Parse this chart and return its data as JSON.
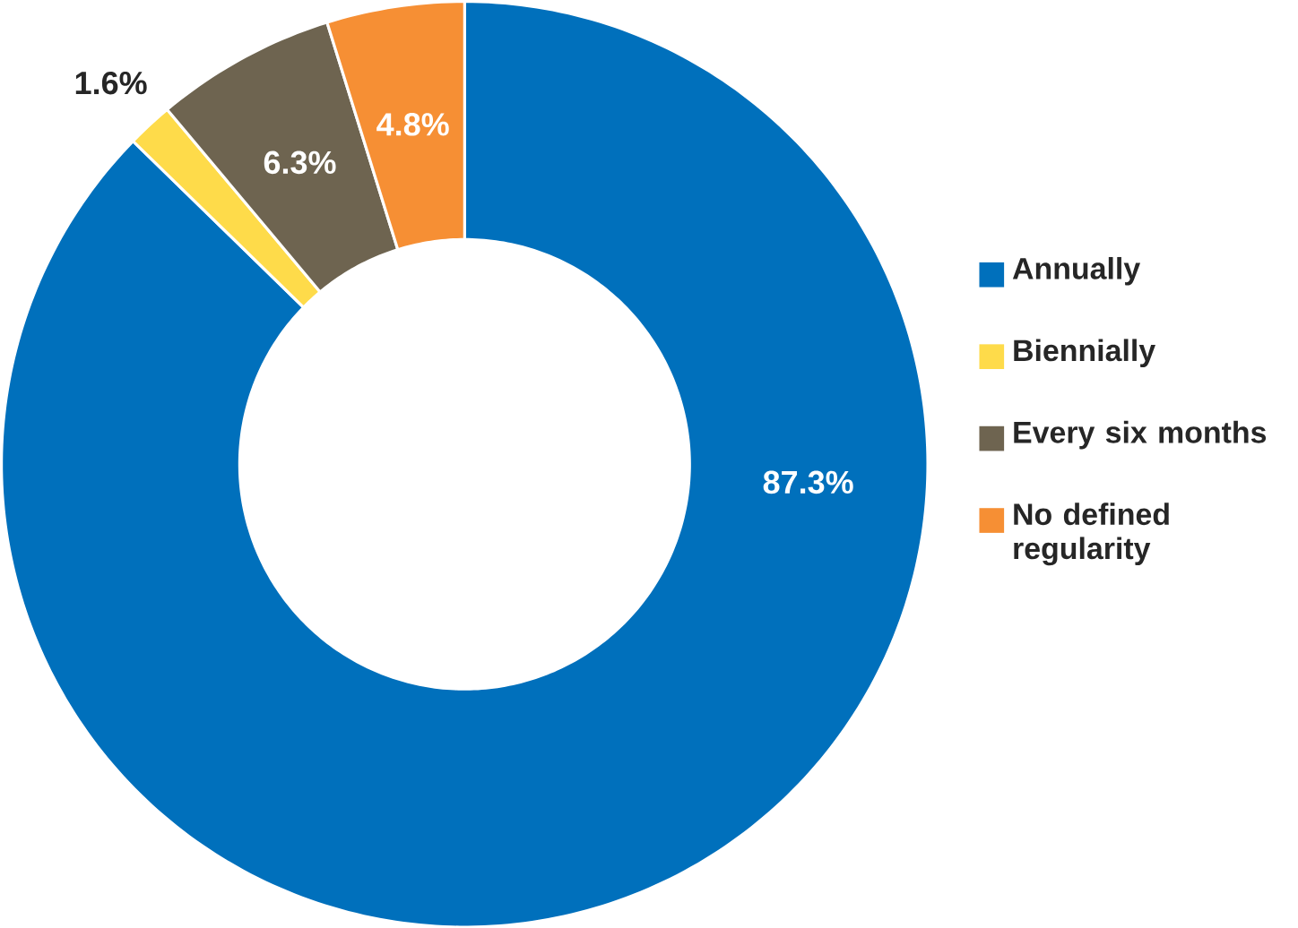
{
  "chart_data": {
    "type": "donut",
    "categories": [
      "Annually",
      "Biennially",
      "Every six months",
      "No defined regularity"
    ],
    "values": [
      87.3,
      1.6,
      6.3,
      4.8
    ],
    "colors": [
      "#0070bc",
      "#fedb4a",
      "#6e6450",
      "#f68f34"
    ],
    "value_labels": [
      "87.3%",
      "1.6%",
      "6.3%",
      "4.8%"
    ],
    "legend": "right"
  }
}
